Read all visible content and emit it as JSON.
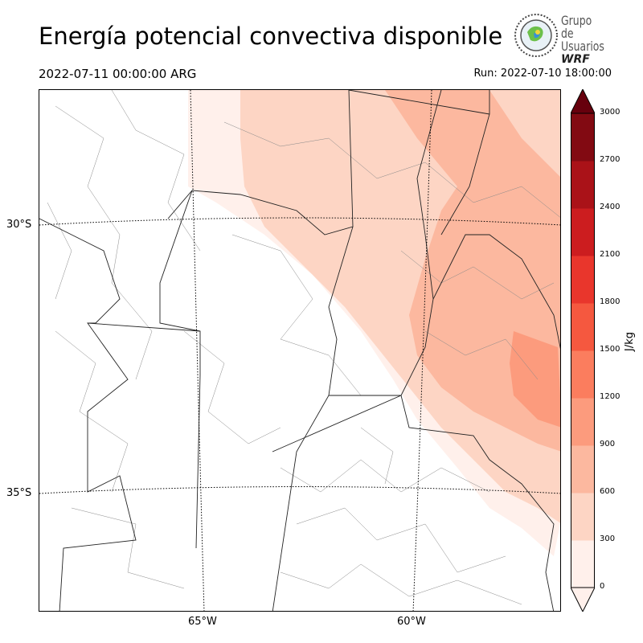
{
  "header": {
    "title": "Energía potencial convectiva disponible",
    "valid_time": "2022-07-11 00:00:00 ARG",
    "run_label": "Run: 2022-07-10 18:00:00"
  },
  "logo": {
    "line1": "Grupo de",
    "line2": "Usuarios",
    "line3": "WRF"
  },
  "map": {
    "lat_labels": [
      "30°S",
      "35°S"
    ],
    "lon_labels": [
      "65°W",
      "60°W"
    ],
    "gridline_style": "dotted"
  },
  "colorbar": {
    "unit": "J/kg",
    "ticks": [
      "0",
      "300",
      "600",
      "900",
      "1200",
      "1500",
      "1800",
      "2100",
      "2400",
      "2700",
      "3000"
    ],
    "colors": [
      "#fff0eb",
      "#fdd5c4",
      "#fcb89f",
      "#fc9b7d",
      "#fb7d5e",
      "#f5583f",
      "#e9362c",
      "#cc1d1f",
      "#aa1218",
      "#820a12",
      "#67000d"
    ],
    "extend": "both"
  }
}
